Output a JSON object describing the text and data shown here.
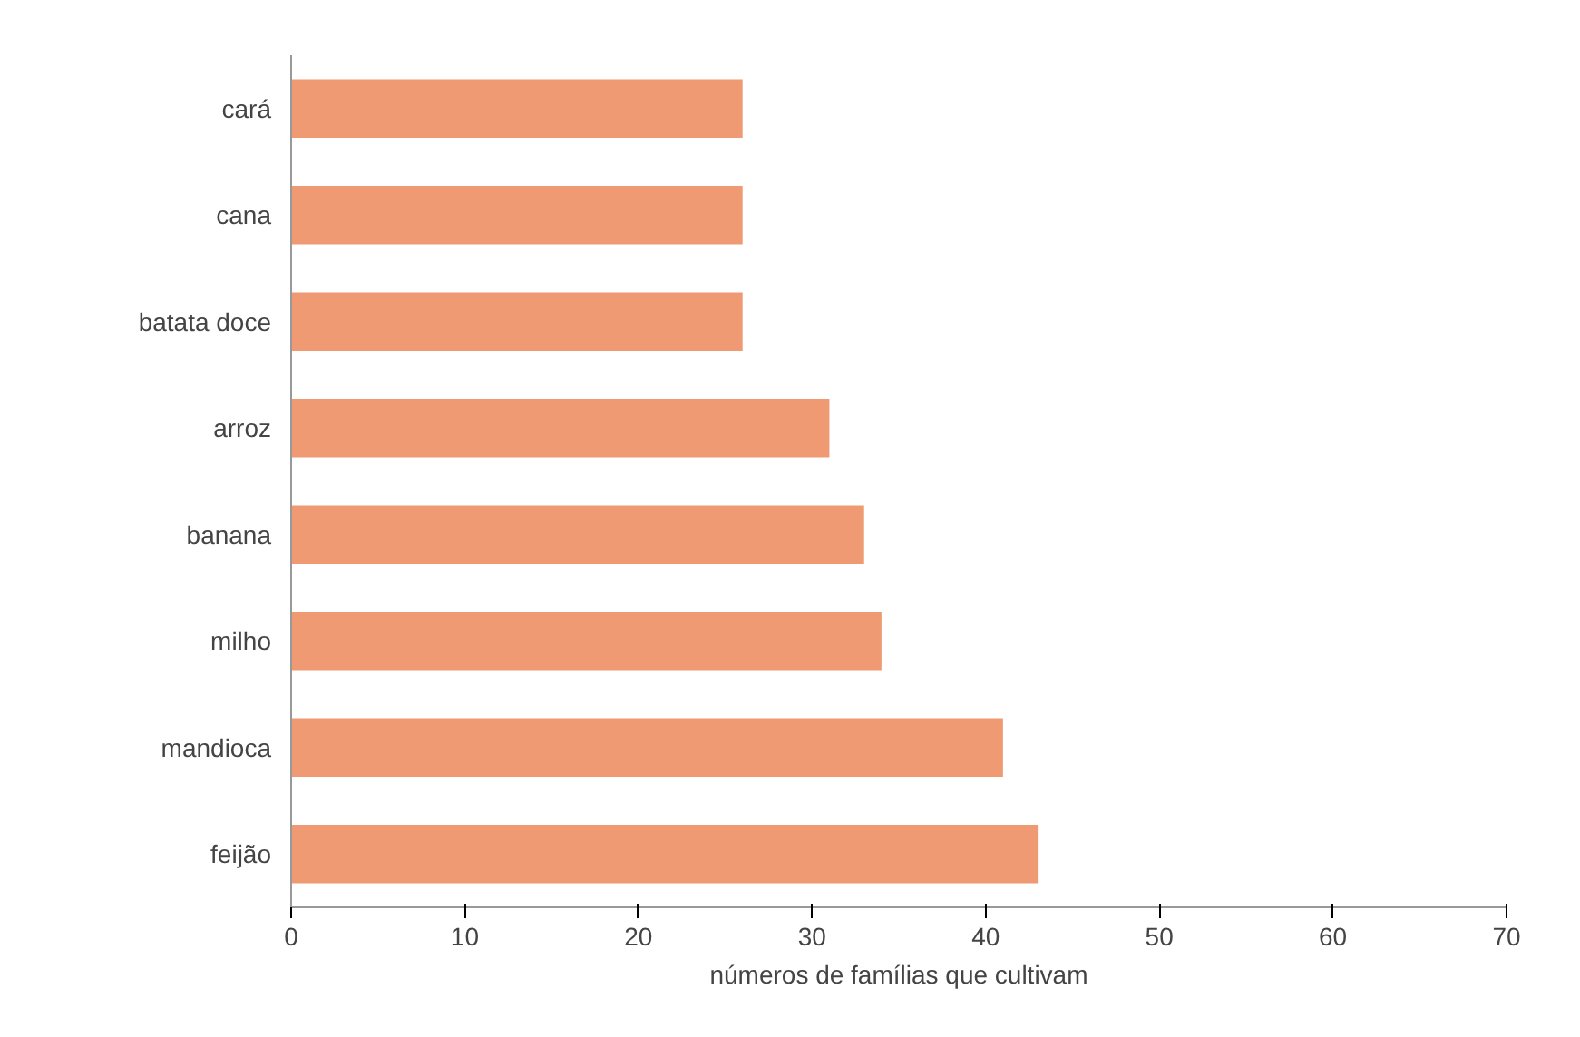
{
  "chart_data": {
    "type": "bar",
    "orientation": "horizontal",
    "xlabel": "números de famílias que cultivam",
    "categories": [
      "cará",
      "cana",
      "batata doce",
      "arroz",
      "banana",
      "milho",
      "mandioca",
      "feijão"
    ],
    "values": [
      26,
      26,
      26,
      31,
      33,
      34,
      41,
      43
    ],
    "color": "#ef9a72",
    "xlim": [
      0,
      70
    ],
    "xticks": [
      0,
      10,
      20,
      30,
      40,
      50,
      60,
      70
    ],
    "grid": false
  }
}
